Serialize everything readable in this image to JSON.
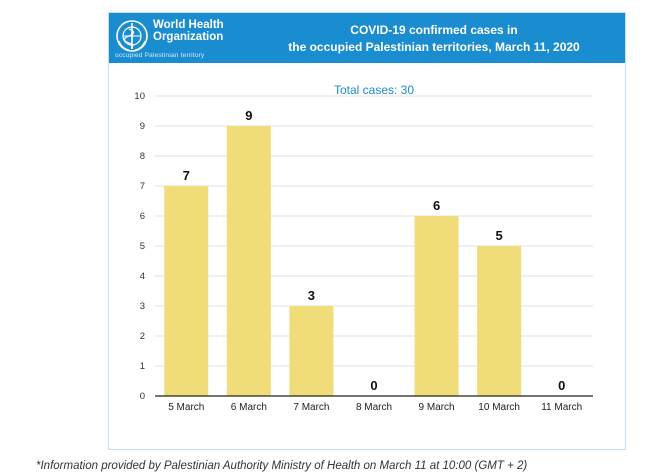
{
  "header": {
    "org_name_line1": "World Health",
    "org_name_line2": "Organization",
    "org_sub": "occupied Palestinian territory",
    "title_line1": "COVID-19 confirmed cases in",
    "title_line2": "the occupied Palestinian territories, March 11, 2020"
  },
  "annotation": "Total cases: 30",
  "footnote": "*Information provided by Palestinian Authority Ministry of Health on March 11 at 10:00 (GMT + 2)",
  "colors": {
    "banner": "#1a8cd0",
    "bar": "#f0dc78",
    "annotation": "#1a8cd0"
  },
  "chart_data": {
    "type": "bar",
    "title": "COVID-19 confirmed cases in the occupied Palestinian territories, March 11, 2020",
    "categories": [
      "5 March",
      "6 March",
      "7 March",
      "8 March",
      "9 March",
      "10 March",
      "11 March"
    ],
    "values": [
      7,
      9,
      3,
      0,
      6,
      5,
      0
    ],
    "xlabel": "",
    "ylabel": "",
    "ylim": [
      0,
      10
    ],
    "yticks": [
      0,
      1,
      2,
      3,
      4,
      5,
      6,
      7,
      8,
      9,
      10
    ],
    "grid": true,
    "data_labels": true
  }
}
